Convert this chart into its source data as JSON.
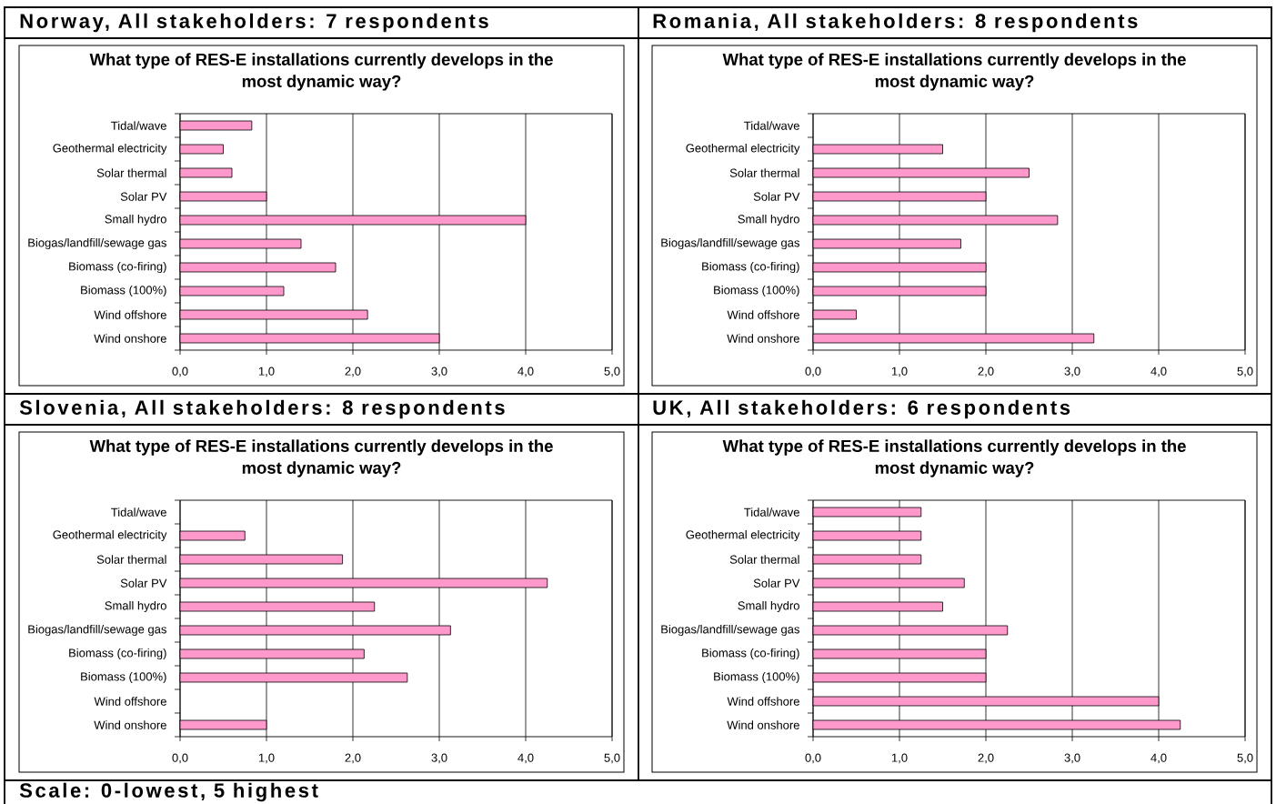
{
  "chart_data": [
    {
      "type": "bar",
      "orientation": "horizontal",
      "title": "Norway, All stakeholders: 7 respondents",
      "subtitle": "What type of RES-E installations currently develops in the most dynamic way?",
      "categories": [
        "Tidal/wave",
        "Geothermal electricity",
        "Solar thermal",
        "Solar PV",
        "Small hydro",
        "Biogas/landfill/sewage gas",
        "Biomass (co-firing)",
        "Biomass (100%)",
        "Wind offshore",
        "Wind onshore"
      ],
      "values": [
        0.83,
        0.5,
        0.6,
        1.0,
        4.0,
        1.4,
        1.8,
        1.2,
        2.17,
        3.0
      ],
      "color": "#ff99cc",
      "xlim": [
        0,
        5
      ],
      "xticks": [
        {
          "value": 0,
          "label": "0,0"
        },
        {
          "value": 1,
          "label": "1,0"
        },
        {
          "value": 2,
          "label": "2,0"
        },
        {
          "value": 3,
          "label": "3,0"
        },
        {
          "value": 4,
          "label": "4,0"
        },
        {
          "value": 5,
          "label": "5,0"
        }
      ],
      "grid": "x"
    },
    {
      "type": "bar",
      "orientation": "horizontal",
      "title": "Romania, All stakeholders: 8 respondents",
      "subtitle": "What type of RES-E installations currently develops in the most dynamic way?",
      "categories": [
        "Tidal/wave",
        "Geothermal electricity",
        "Solar thermal",
        "Solar PV",
        "Small hydro",
        "Biogas/landfill/sewage gas",
        "Biomass (co-firing)",
        "Biomass (100%)",
        "Wind offshore",
        "Wind onshore"
      ],
      "values": [
        null,
        1.5,
        2.5,
        2.0,
        2.83,
        1.71,
        2.0,
        2.0,
        0.5,
        3.25
      ],
      "color": "#ff99cc",
      "xlim": [
        0,
        5
      ],
      "xticks": [
        {
          "value": 0,
          "label": "0,0"
        },
        {
          "value": 1,
          "label": "1,0"
        },
        {
          "value": 2,
          "label": "2,0"
        },
        {
          "value": 3,
          "label": "3,0"
        },
        {
          "value": 4,
          "label": "4,0"
        },
        {
          "value": 5,
          "label": "5,0"
        }
      ],
      "grid": "x"
    },
    {
      "type": "bar",
      "orientation": "horizontal",
      "title": "Slovenia, All stakeholders: 8 respondents",
      "subtitle": "What type of RES-E installations currently develops in the most dynamic way?",
      "categories": [
        "Tidal/wave",
        "Geothermal electricity",
        "Solar thermal",
        "Solar PV",
        "Small hydro",
        "Biogas/landfill/sewage gas",
        "Biomass (co-firing)",
        "Biomass (100%)",
        "Wind offshore",
        "Wind onshore"
      ],
      "values": [
        null,
        0.75,
        1.88,
        4.25,
        2.25,
        3.13,
        2.13,
        2.63,
        null,
        1.0
      ],
      "color": "#ff99cc",
      "xlim": [
        0,
        5
      ],
      "xticks": [
        {
          "value": 0,
          "label": "0,0"
        },
        {
          "value": 1,
          "label": "1,0"
        },
        {
          "value": 2,
          "label": "2,0"
        },
        {
          "value": 3,
          "label": "3,0"
        },
        {
          "value": 4,
          "label": "4,0"
        },
        {
          "value": 5,
          "label": "5,0"
        }
      ],
      "grid": "x",
      "annotations": [
        "Scale: 0-lowest, 5 highest"
      ]
    },
    {
      "type": "bar",
      "orientation": "horizontal",
      "title": "UK, All stakeholders: 6 respondents",
      "subtitle": "What type of RES-E installations currently develops in the most dynamic way?",
      "categories": [
        "Tidal/wave",
        "Geothermal electricity",
        "Solar thermal",
        "Solar PV",
        "Small hydro",
        "Biogas/landfill/sewage gas",
        "Biomass (co-firing)",
        "Biomass (100%)",
        "Wind offshore",
        "Wind onshore"
      ],
      "values": [
        1.25,
        1.25,
        1.25,
        1.75,
        1.5,
        2.25,
        2.0,
        2.0,
        4.0,
        4.25
      ],
      "color": "#ff99cc",
      "xlim": [
        0,
        5
      ],
      "xticks": [
        {
          "value": 0,
          "label": "0,0"
        },
        {
          "value": 1,
          "label": "1,0"
        },
        {
          "value": 2,
          "label": "2,0"
        },
        {
          "value": 3,
          "label": "3,0"
        },
        {
          "value": 4,
          "label": "4,0"
        },
        {
          "value": 5,
          "label": "5,0"
        }
      ],
      "grid": "x"
    }
  ]
}
